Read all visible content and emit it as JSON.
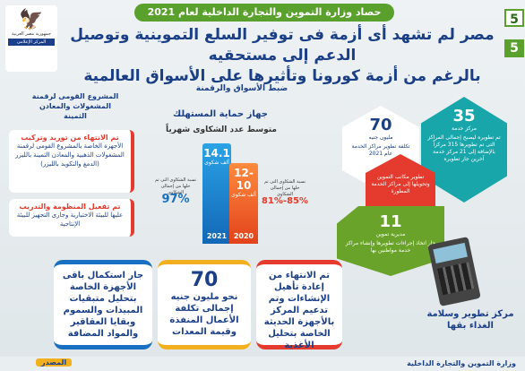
{
  "header": {
    "top_title": "حصاد وزارة التموين والتجارة الداخلية لعام 2021",
    "badge_top": "5",
    "badge_bottom": "5",
    "headline_1": "مصر لم تشهد أى أزمة فى توفير السلع التموينية وتوصيل الدعم إلى مستحقيه",
    "headline_2": "بالرغم من أزمة كورونا وتأثيرها على الأسواق العالمية",
    "logo_text_1": "جمهورية مصر العربية",
    "logo_text_2": "المركز الإعلامى",
    "sub_title": "ضبط الأسواق والرقمنة"
  },
  "left": {
    "project_title": "المشروع القومى لرقمنة المشغولات والمعادن الثمينة",
    "box1_head": "تم الانتهاء من توريد وتركيب",
    "box1_body": "الأجهزة الخاصة بالمشروع القومى لرقمنة المشغولات الذهبية والمعادن الثمينة بالليزر (الدمغ والتكويد بالليزر)",
    "box2_head": "تم تفعيل المنظومة والتدريب",
    "box2_body": "عليها للبيئة الاختبارية وجارى التجهيز للبيئة الإنتاجية"
  },
  "consumer": {
    "title": "جهاز حماية المستهلك",
    "subtitle": "متوسط عدد الشكاوى شهرياً",
    "bar_2021_value": "14.1",
    "bar_2021_unit": "ألف شكوى",
    "bar_2021_year": "2021",
    "bar_2020_value": "12-10",
    "bar_2020_unit": "ألف شكوى",
    "bar_2020_year": "2020",
    "pct_2021_label": "نسبة الشكاوى التى تم حلها من إجمالى الشكاوى",
    "pct_2021_value": "97%",
    "pct_2020_label": "نسبة الشكاوى التى تم حلها من إجمالى الشكاوى",
    "pct_2020_value": "85%-81%"
  },
  "hexes": {
    "h35_num": "35",
    "h35_sub": "مركز خدمة",
    "h35_desc": "تم تطويره ليصبح إجمالى المراكز التى تم تطويرها 315 مركزاً بالإضافة إلى 21 مركز خدمة آخرين جار تطويره",
    "h70_num": "70",
    "h70_sub": "مليون جنيه",
    "h70_desc": "تكلفة تطوير مراكز الخدمة عام 2021",
    "hdev_desc": "تطوير مكاتب التموين وتحويلها إلى مراكز الخدمة المطورة",
    "h11_num": "11",
    "h11_sub": "مديرية تموين",
    "h11_desc": "جار اتخاذ إجراءات تطويرها وإنشاء مراكز خدمة مواطنين بها"
  },
  "bottom": {
    "box_right": "تم الانتهاء من إعادة تأهيل الإنشاءات وتم تدعيم المركز بالأجهزة الحديثة الخاصة بتحليل الأغذية",
    "box_mid_num": "70",
    "box_mid_text": "نحو مليون جنيه إجمالى تكلفة الأعمال المنفذة وقيمة المعدات",
    "box_left": "جار استكمال باقى الأجهزة الخاصة بتحليل متبقيات المبيدات والسموم وبقايا العقاقير والمواد المضافة",
    "food_title": "مركز تطوير وسلامة الغذاء بقها"
  },
  "footer": {
    "source_label": "المصدر",
    "ministry": "وزارة التموين والتجارة الداخلية"
  },
  "colors": {
    "brand_blue": "#1a3f86",
    "green": "#5aa02c",
    "red": "#e53b2e",
    "teal": "#18a6ab",
    "orange": "#f08a1f"
  }
}
